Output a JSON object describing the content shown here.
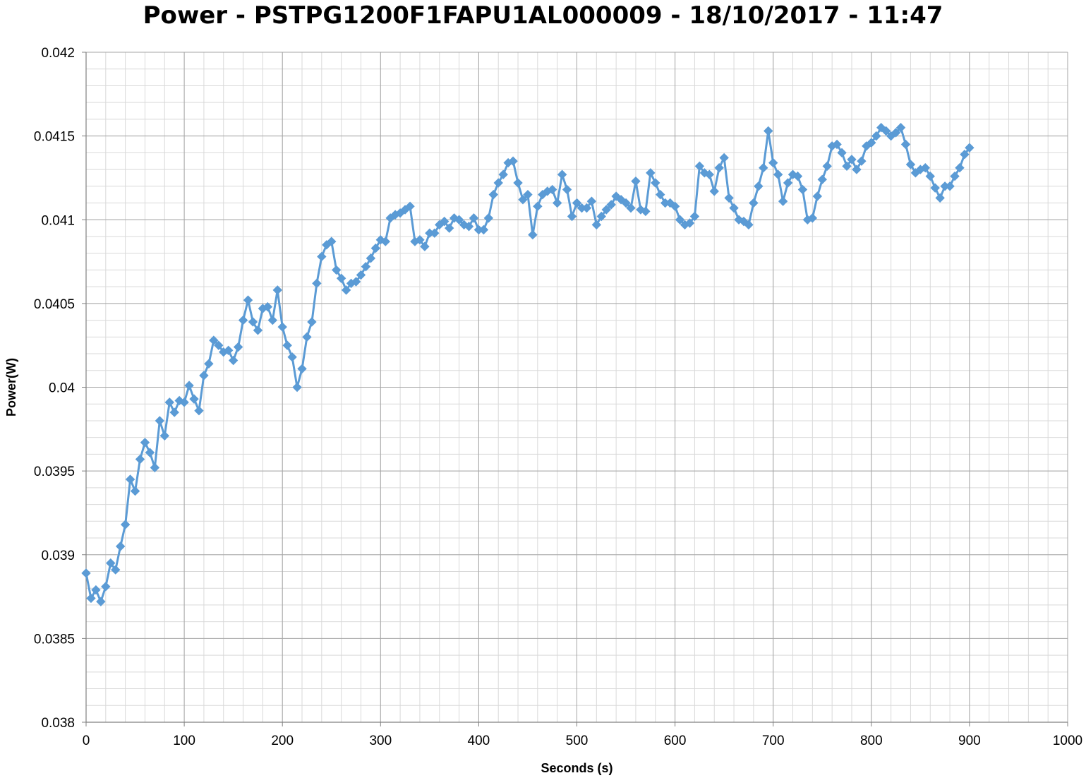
{
  "chart_data": {
    "type": "line",
    "title": "Power - PSTPG1200F1FAPU1AL000009 - 18/10/2017 - 11:47",
    "xlabel": "Seconds (s)",
    "ylabel": "Power(W)",
    "xlim": [
      0,
      1000
    ],
    "ylim": [
      0.038,
      0.042
    ],
    "x_ticks": [
      0,
      100,
      200,
      300,
      400,
      500,
      600,
      700,
      800,
      900,
      1000
    ],
    "y_ticks": [
      0.038,
      0.0385,
      0.039,
      0.0395,
      0.04,
      0.0405,
      0.041,
      0.0415,
      0.042
    ],
    "x_tick_labels": [
      "0",
      "100",
      "200",
      "300",
      "400",
      "500",
      "600",
      "700",
      "800",
      "900",
      "1000"
    ],
    "y_tick_labels": [
      "0.038",
      "0.0385",
      "0.039",
      "0.0395",
      "0.04",
      "0.0405",
      "0.041",
      "0.0415",
      "0.042"
    ],
    "grid": true,
    "marker": "diamond",
    "series_color": "#5b9bd5",
    "series": [
      {
        "x": [
          0,
          5,
          10,
          15,
          20,
          25,
          30,
          35,
          40,
          45,
          50,
          55,
          60,
          65,
          70,
          75,
          80,
          85,
          90,
          95,
          100,
          105,
          110,
          115,
          120,
          125,
          130,
          135,
          140,
          145,
          150,
          155,
          160,
          165,
          170,
          175,
          180,
          185,
          190,
          195,
          200,
          205,
          210,
          215,
          220,
          225,
          230,
          235,
          240,
          245,
          250,
          255,
          260,
          265,
          270,
          275,
          280,
          285,
          290,
          295,
          300,
          305,
          310,
          315,
          320,
          325,
          330,
          335,
          340,
          345,
          350,
          355,
          360,
          365,
          370,
          375,
          380,
          385,
          390,
          395,
          400,
          405,
          410,
          415,
          420,
          425,
          430,
          435,
          440,
          445,
          450,
          455,
          460,
          465,
          470,
          475,
          480,
          485,
          490,
          495,
          500,
          505,
          510,
          515,
          520,
          525,
          530,
          535,
          540,
          545,
          550,
          555,
          560,
          565,
          570,
          575,
          580,
          585,
          590,
          595,
          600,
          605,
          610,
          615,
          620,
          625,
          630,
          635,
          640,
          645,
          650,
          655,
          660,
          665,
          670,
          675,
          680,
          685,
          690,
          695,
          700,
          705,
          710,
          715,
          720,
          725,
          730,
          735,
          740,
          745,
          750,
          755,
          760,
          765,
          770,
          775,
          780,
          785,
          790,
          795,
          800,
          805,
          810,
          815,
          820,
          825,
          830,
          835,
          840,
          845,
          850,
          855,
          860,
          865,
          870,
          875,
          880,
          885,
          890,
          895,
          900
        ],
        "y": [
          0.03889,
          0.03874,
          0.03879,
          0.03872,
          0.03881,
          0.03895,
          0.03891,
          0.03905,
          0.03918,
          0.03945,
          0.03938,
          0.03957,
          0.03967,
          0.03961,
          0.03952,
          0.0398,
          0.03971,
          0.03991,
          0.03985,
          0.03992,
          0.03991,
          0.04001,
          0.03993,
          0.03986,
          0.04007,
          0.04014,
          0.04028,
          0.04025,
          0.04021,
          0.04022,
          0.04016,
          0.04024,
          0.0404,
          0.04052,
          0.04039,
          0.04034,
          0.04047,
          0.04048,
          0.0404,
          0.04058,
          0.04036,
          0.04025,
          0.04018,
          0.04,
          0.04011,
          0.0403,
          0.04039,
          0.04062,
          0.04078,
          0.04085,
          0.04087,
          0.0407,
          0.04065,
          0.04058,
          0.04062,
          0.04063,
          0.04067,
          0.04072,
          0.04077,
          0.04083,
          0.04088,
          0.04087,
          0.04101,
          0.04103,
          0.04104,
          0.04106,
          0.04108,
          0.04087,
          0.04088,
          0.04084,
          0.04092,
          0.04092,
          0.04097,
          0.04099,
          0.04095,
          0.04101,
          0.041,
          0.04097,
          0.04096,
          0.04101,
          0.04094,
          0.04094,
          0.04101,
          0.04115,
          0.04122,
          0.04127,
          0.04134,
          0.04135,
          0.04122,
          0.04112,
          0.04115,
          0.04091,
          0.04108,
          0.04115,
          0.04117,
          0.04118,
          0.0411,
          0.04127,
          0.04118,
          0.04102,
          0.0411,
          0.04107,
          0.04107,
          0.04111,
          0.04097,
          0.04102,
          0.04106,
          0.04109,
          0.04114,
          0.04112,
          0.0411,
          0.04107,
          0.04123,
          0.04106,
          0.04105,
          0.04128,
          0.04122,
          0.04115,
          0.0411,
          0.0411,
          0.04108,
          0.041,
          0.04097,
          0.04098,
          0.04102,
          0.04132,
          0.04128,
          0.04127,
          0.04117,
          0.04131,
          0.04137,
          0.04113,
          0.04107,
          0.041,
          0.04099,
          0.04097,
          0.0411,
          0.0412,
          0.04131,
          0.04153,
          0.04134,
          0.04127,
          0.04111,
          0.04122,
          0.04127,
          0.04126,
          0.04118,
          0.041,
          0.04101,
          0.04114,
          0.04124,
          0.04132,
          0.04144,
          0.04145,
          0.0414,
          0.04132,
          0.04136,
          0.0413,
          0.04135,
          0.04144,
          0.04146,
          0.0415,
          0.04155,
          0.04153,
          0.0415,
          0.04152,
          0.04155,
          0.04145,
          0.04133,
          0.04128,
          0.0413,
          0.04131,
          0.04126,
          0.04119,
          0.04113,
          0.0412,
          0.0412,
          0.04126,
          0.04131,
          0.04139,
          0.04143
        ]
      }
    ]
  }
}
